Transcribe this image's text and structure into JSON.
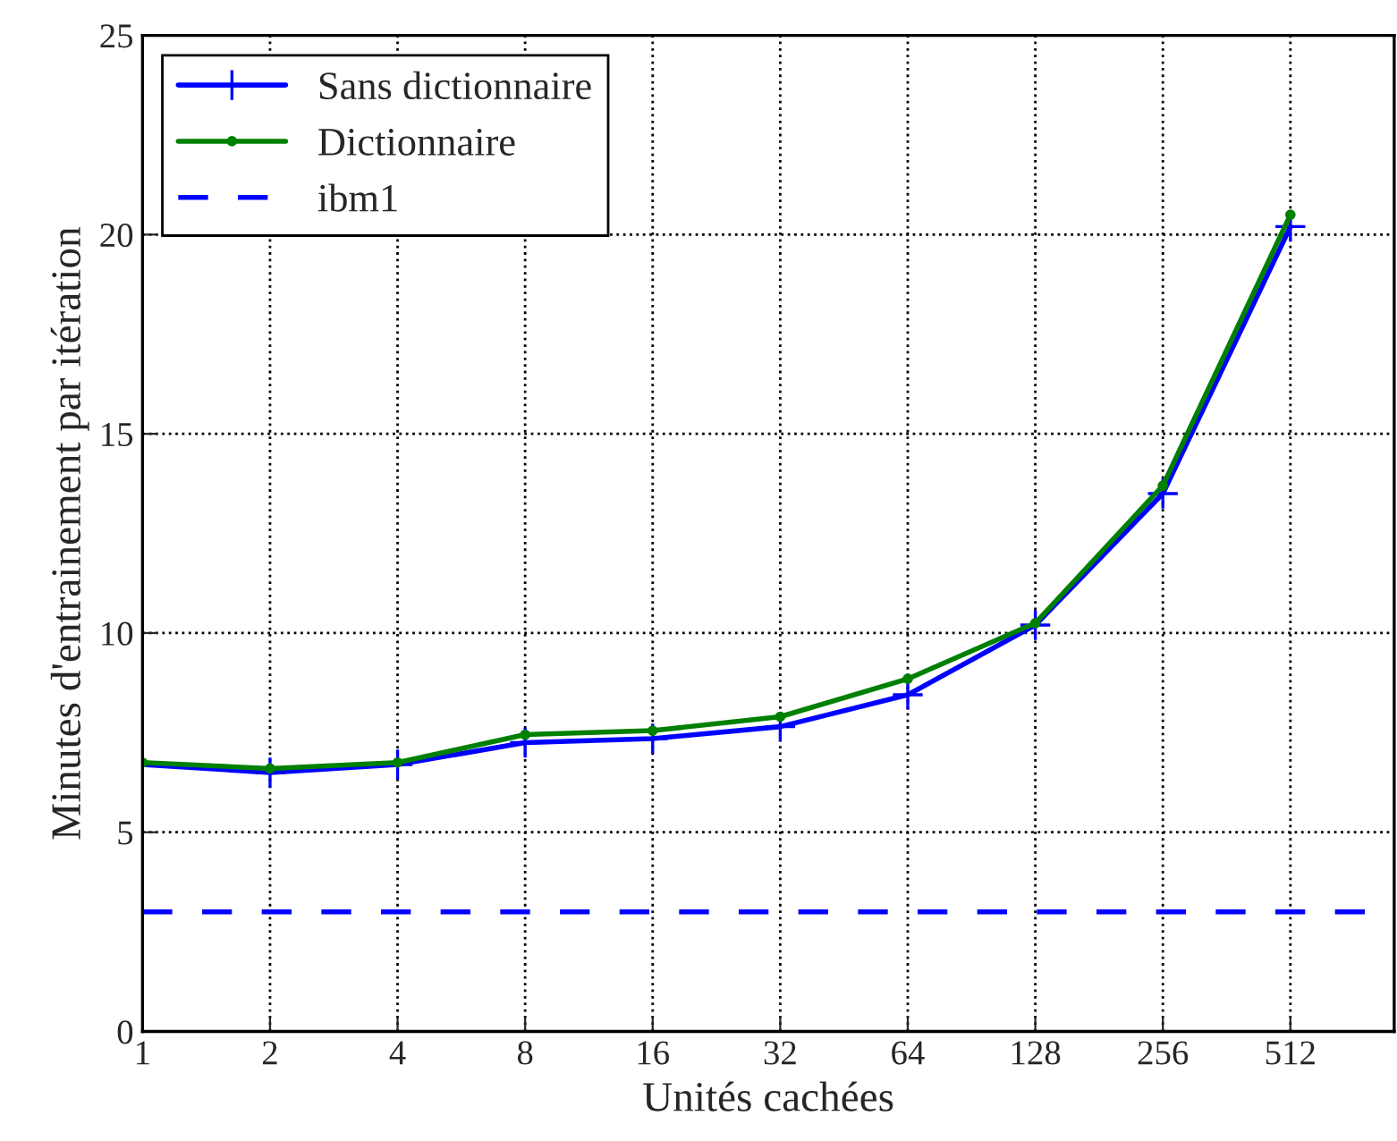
{
  "chart_data": {
    "type": "line",
    "xlabel": "Unités cachées",
    "ylabel": "Minutes d'entrainement par itération",
    "x": [
      1,
      2,
      4,
      8,
      16,
      32,
      64,
      128,
      256,
      512
    ],
    "series": [
      {
        "name": "Sans dictionnaire",
        "color": "#0000ff",
        "marker": "cross",
        "values": [
          6.7,
          6.5,
          6.7,
          7.25,
          7.35,
          7.65,
          8.45,
          10.2,
          13.5,
          20.2
        ]
      },
      {
        "name": "Dictionnaire",
        "color": "#008000",
        "marker": "circle",
        "values": [
          6.75,
          6.6,
          6.75,
          7.45,
          7.55,
          7.9,
          8.85,
          10.25,
          13.7,
          20.5
        ]
      }
    ],
    "ref_lines": [
      {
        "axis": "y",
        "value": 3,
        "label": "ibm1",
        "color": "#0000ff",
        "line_style": "dashed"
      }
    ],
    "log": "x",
    "xlim": [
      1,
      900
    ],
    "xticks": [
      1,
      2,
      4,
      8,
      16,
      32,
      64,
      128,
      256,
      512
    ],
    "ylim": [
      0,
      25
    ],
    "yticks": [
      0,
      5,
      10,
      15,
      20,
      25
    ],
    "grid": true,
    "legend": "top left"
  }
}
